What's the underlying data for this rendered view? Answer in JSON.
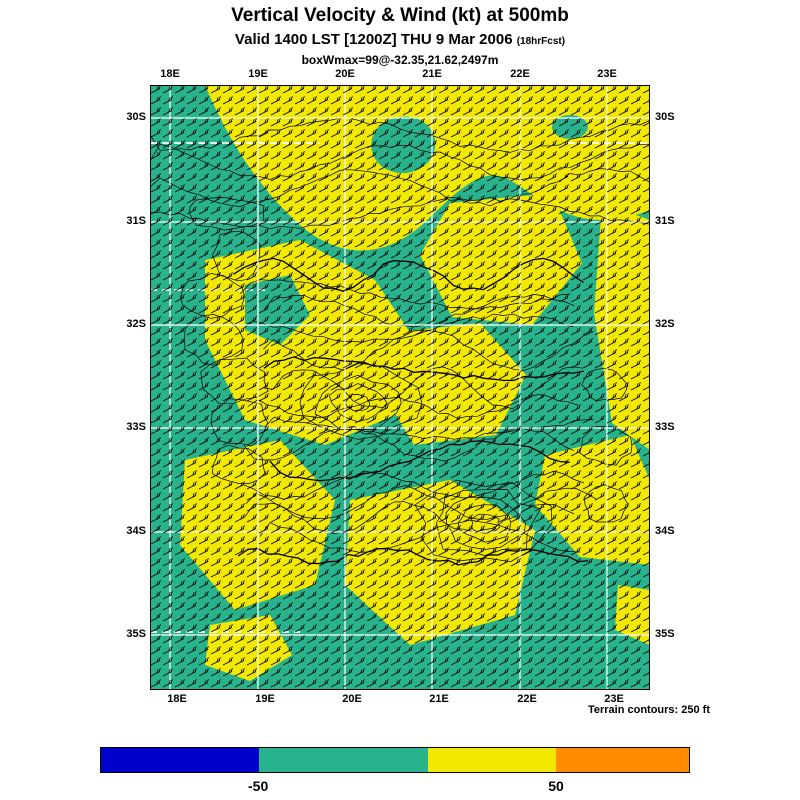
{
  "header": {
    "title": "Vertical Velocity & Wind (kt) at 500mb",
    "subtitle": "Valid 1400 LST [1200Z] THU 9 Mar 2006",
    "forecast_tag": "(18hrFcst)",
    "annotation": "boxWmax=99@-32.35,21.62,2497m"
  },
  "map": {
    "x_ticks": [
      "18E",
      "19E",
      "20E",
      "21E",
      "22E",
      "23E"
    ],
    "y_ticks": [
      "30S",
      "31S",
      "32S",
      "33S",
      "34S",
      "35S"
    ],
    "colors": {
      "negative_fill": "#29b38c",
      "positive_fill": "#f2e800",
      "contour": "#000000",
      "grid": "#ffffff"
    }
  },
  "footer": {
    "terrain_note": "Terrain contours: 250 ft"
  },
  "colorbar": {
    "segment_colors": [
      "#0000cd",
      "#29b38c",
      "#f2e800",
      "#ff8c00"
    ],
    "tick_labels": [
      "-50",
      "50"
    ]
  },
  "chart_data": {
    "type": "heatmap",
    "title": "Vertical Velocity & Wind (kt) at 500mb",
    "subtitle": "Valid 1400 LST [1200Z] THU 9 Mar 2006 (18hrFcst)",
    "annotation": "boxWmax=99@-32.35,21.62,2497m",
    "x_ticks": [
      "18E",
      "19E",
      "20E",
      "21E",
      "22E",
      "23E"
    ],
    "y_ticks": [
      "30S",
      "31S",
      "32S",
      "33S",
      "34S",
      "35S"
    ],
    "fill_scale": {
      "units": "kt",
      "tick_labels": [
        "-50",
        "50"
      ],
      "segment_colors": [
        "#0000cd",
        "#29b38c",
        "#f2e800",
        "#ff8c00"
      ]
    },
    "overlays": [
      "wind-barbs",
      "terrain-contours",
      "lat-lon-grid"
    ],
    "terrain_note": "Terrain contours: 250 ft"
  }
}
